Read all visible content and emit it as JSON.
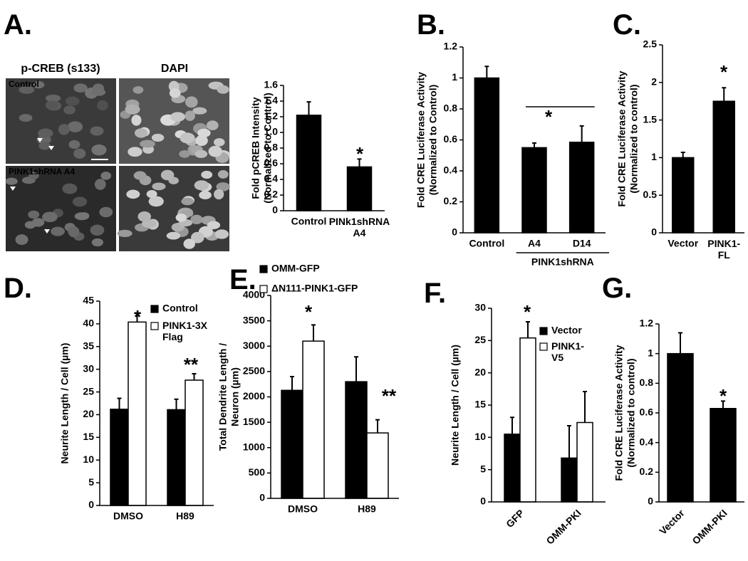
{
  "panel_a_images": {
    "headers": [
      "p-CREB (s133)",
      "DAPI"
    ],
    "row_labels": [
      "Control",
      "PINK1shRNA A4"
    ]
  },
  "chart_data": [
    {
      "type": "bar",
      "panel_label": "A.",
      "ylabel": "Fold pCREB  Intensity\n(Normalized to Control)",
      "categories": [
        "Control",
        "PINk1shRNA\nA4"
      ],
      "values": [
        1.22,
        0.56
      ],
      "errors": [
        0.17,
        0.1
      ],
      "color": "#000000",
      "ylim": [
        0,
        1.6
      ],
      "yticks": [
        0,
        0.2,
        0.4,
        0.6,
        0.8,
        {
          "value": 1,
          "label": "1.0"
        },
        1.2,
        1.4,
        1.6
      ],
      "annotations": [
        "*"
      ]
    },
    {
      "type": "bar",
      "panel_label": "B.",
      "ylabel": "Fold CRE Luciferase Activity\n(Normalized to Control)",
      "categories": [
        "Control",
        "A4",
        "D14"
      ],
      "values": [
        1,
        0.55,
        0.585
      ],
      "errors": [
        0.075,
        0.03,
        0.105
      ],
      "color": "#000000",
      "ylim": [
        0,
        1.2
      ],
      "yticks": [
        0,
        0.2,
        0.4,
        0.6,
        0.8,
        1,
        1.2
      ],
      "group_label": "PINK1shRNA",
      "annotations": [
        "*"
      ]
    },
    {
      "type": "bar",
      "panel_label": "C.",
      "ylabel": "Fold CRE Luciferase Activity\n(Normalized to control)",
      "categories": [
        "Vector",
        "PINK1-\nFL"
      ],
      "values": [
        1,
        1.75
      ],
      "errors": [
        0.07,
        0.18
      ],
      "color": "#000000",
      "ylim": [
        0,
        2.5
      ],
      "yticks": [
        0,
        0.5,
        1,
        1.5,
        2,
        2.5
      ],
      "annotations": [
        "*"
      ]
    },
    {
      "type": "grouped_bar",
      "panel_label": "D.",
      "ylabel": "Neurite Length / Cell  (µm)",
      "categories": [
        "DMSO",
        "H89"
      ],
      "series": [
        {
          "name": "Control",
          "color": "#000000",
          "values": [
            21.2,
            21.1
          ],
          "errors": [
            2.4,
            2.3
          ]
        },
        {
          "name": "PINK1-3X\nFlag",
          "color": "#ffffff",
          "values": [
            40.4,
            27.6
          ],
          "errors": [
            2,
            1.4
          ]
        }
      ],
      "ylim": [
        0,
        45
      ],
      "yticks": [
        0,
        5,
        10,
        15,
        20,
        25,
        30,
        35,
        40,
        45
      ],
      "annotations": [
        "*",
        "**"
      ]
    },
    {
      "type": "grouped_bar",
      "panel_label": "E.",
      "ylabel": "Total Dendrite Length /\nNeuron (µm)",
      "categories": [
        "DMSO",
        "H89"
      ],
      "series": [
        {
          "name": "OMM-GFP",
          "color": "#000000",
          "values": [
            2130,
            2300
          ],
          "errors": [
            270,
            490
          ]
        },
        {
          "name": "ΔN111-PINK1-GFP",
          "color": "#ffffff",
          "values": [
            3100,
            1290
          ],
          "errors": [
            320,
            260
          ]
        }
      ],
      "ylim": [
        0,
        4000
      ],
      "yticks": [
        0,
        500,
        1000,
        1500,
        2000,
        2500,
        3000,
        3500,
        4000
      ],
      "annotations": [
        "*",
        "**"
      ]
    },
    {
      "type": "grouped_bar",
      "panel_label": "F.",
      "ylabel": "Neurite Length / Cell (µm)",
      "categories": [
        "GFP",
        "OMM-PKI"
      ],
      "series": [
        {
          "name": "Vector",
          "color": "#000000",
          "values": [
            10.5,
            6.8
          ],
          "errors": [
            2.6,
            5
          ]
        },
        {
          "name": "PINK1-\nV5",
          "color": "#ffffff",
          "values": [
            25.4,
            12.3
          ],
          "errors": [
            2.5,
            4.8
          ]
        }
      ],
      "ylim": [
        0,
        30
      ],
      "yticks": [
        0,
        5,
        10,
        15,
        20,
        25,
        30
      ],
      "annotations": [
        "*"
      ]
    },
    {
      "type": "bar",
      "panel_label": "G.",
      "ylabel": "Fold CRE Luciferase Activity\n(Normalized to control)",
      "categories": [
        "Vector",
        "OMM-PKI"
      ],
      "values": [
        1,
        0.63
      ],
      "errors": [
        0.14,
        0.05
      ],
      "color": "#000000",
      "ylim": [
        0,
        1.2
      ],
      "yticks": [
        0,
        0.2,
        0.4,
        0.6,
        0.8,
        1,
        1.2
      ],
      "annotations": [
        "*"
      ]
    }
  ]
}
